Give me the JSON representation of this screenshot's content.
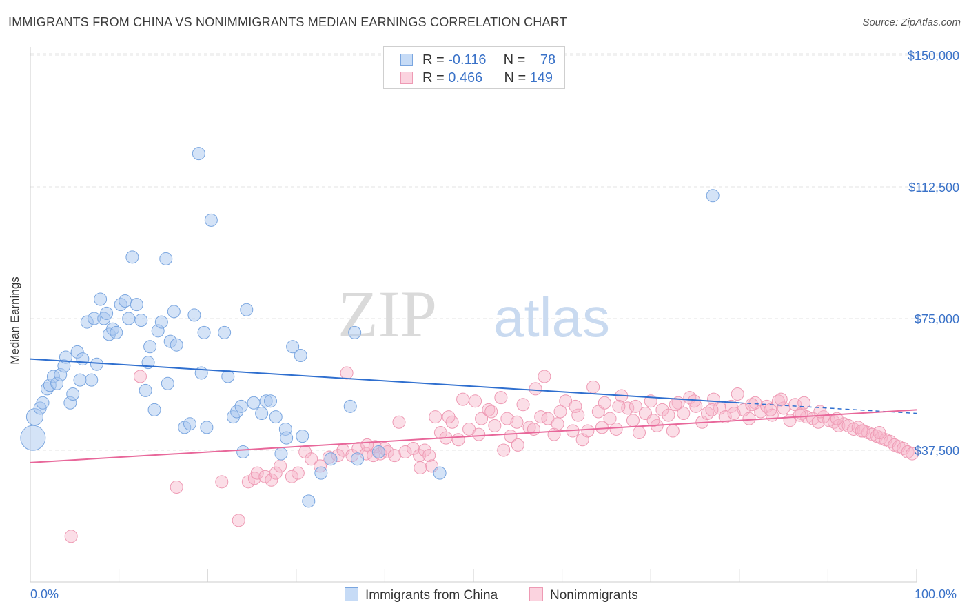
{
  "header": {
    "title": "IMMIGRANTS FROM CHINA VS NONIMMIGRANTS MEDIAN EARNINGS CORRELATION CHART",
    "source": "Source: ZipAtlas.com"
  },
  "watermark": {
    "zip": "ZIP",
    "atlas": "atlas"
  },
  "legend": {
    "rows": [
      {
        "r_label": "R = ",
        "r_value": "-0.116",
        "n_label": "N = ",
        "n_value": "78",
        "color": "#a9c8f0"
      },
      {
        "r_label": "R = ",
        "r_value": "0.466",
        "n_label": "N = ",
        "n_value": "149",
        "color": "#f6b6c9"
      }
    ]
  },
  "bottom_legend": {
    "items": [
      {
        "label": "Immigrants from China",
        "color": "#a9c8f0"
      },
      {
        "label": "Nonimmigrants",
        "color": "#f6b6c9"
      }
    ]
  },
  "chart_data": {
    "type": "scatter",
    "title": "IMMIGRANTS FROM CHINA VS NONIMMIGRANTS MEDIAN EARNINGS CORRELATION CHART",
    "xlabel": "",
    "ylabel": "Median Earnings",
    "xlim": [
      0,
      100
    ],
    "ylim": [
      0,
      155000
    ],
    "x_tick_labels": [
      "0.0%",
      "100.0%"
    ],
    "y_ticks": [
      37500,
      75000,
      112500,
      150000
    ],
    "y_tick_labels": [
      "$37,500",
      "$75,000",
      "$112,500",
      "$150,000"
    ],
    "grid": true,
    "legend_position": "top-center",
    "colors": {
      "china": "#a9c8f0",
      "china_line": "#2f6fcf",
      "nonimm": "#f6b6c9",
      "nonimm_line": "#e8679a"
    },
    "series": [
      {
        "name": "Immigrants from China",
        "r": -0.116,
        "n": 78,
        "trend": {
          "x": [
            0,
            80
          ],
          "y": [
            63500,
            51000
          ]
        },
        "trend_extension": {
          "x": [
            80,
            100
          ],
          "y": [
            51000,
            48000
          ]
        },
        "points": [
          [
            0.3,
            41000,
            10
          ],
          [
            0.5,
            47000,
            5
          ],
          [
            1.1,
            49500,
            3
          ],
          [
            1.4,
            51000,
            3
          ],
          [
            1.9,
            55000,
            3
          ],
          [
            2.2,
            56000,
            3
          ],
          [
            2.6,
            58500,
            3
          ],
          [
            3.0,
            56500,
            3
          ],
          [
            3.4,
            59000,
            3
          ],
          [
            3.8,
            61500,
            3
          ],
          [
            4.0,
            64000,
            3
          ],
          [
            4.5,
            51000,
            3
          ],
          [
            4.8,
            53500,
            3
          ],
          [
            5.3,
            65500,
            3
          ],
          [
            5.6,
            57500,
            3
          ],
          [
            5.9,
            63500,
            3
          ],
          [
            6.4,
            74000,
            3
          ],
          [
            6.9,
            57500,
            3
          ],
          [
            7.2,
            75000,
            3
          ],
          [
            7.5,
            62000,
            3
          ],
          [
            7.9,
            80500,
            3
          ],
          [
            8.3,
            75000,
            3
          ],
          [
            8.6,
            76500,
            3
          ],
          [
            8.9,
            70500,
            3
          ],
          [
            9.3,
            72000,
            3
          ],
          [
            9.7,
            71000,
            3
          ],
          [
            10.2,
            79000,
            3
          ],
          [
            10.7,
            80000,
            3
          ],
          [
            11.1,
            75000,
            3
          ],
          [
            11.5,
            92500,
            3
          ],
          [
            12.0,
            79000,
            3
          ],
          [
            12.5,
            74500,
            3
          ],
          [
            13.0,
            54500,
            3
          ],
          [
            13.3,
            62500,
            3
          ],
          [
            13.5,
            67000,
            3
          ],
          [
            14.0,
            49000,
            3
          ],
          [
            14.4,
            71500,
            3
          ],
          [
            14.8,
            74000,
            3
          ],
          [
            15.3,
            92000,
            3
          ],
          [
            15.5,
            56500,
            3
          ],
          [
            15.8,
            68500,
            3
          ],
          [
            16.2,
            77000,
            3
          ],
          [
            16.5,
            67500,
            3
          ],
          [
            17.4,
            44000,
            3
          ],
          [
            18.0,
            45000,
            3
          ],
          [
            18.5,
            76000,
            3
          ],
          [
            19.0,
            122000,
            3
          ],
          [
            19.3,
            59500,
            3
          ],
          [
            19.6,
            71000,
            3
          ],
          [
            19.9,
            44000,
            3
          ],
          [
            20.4,
            103000,
            3
          ],
          [
            21.9,
            71000,
            3
          ],
          [
            22.3,
            58500,
            3
          ],
          [
            22.9,
            47000,
            3
          ],
          [
            23.3,
            48500,
            3
          ],
          [
            23.8,
            50000,
            3
          ],
          [
            24.0,
            37000,
            3
          ],
          [
            24.4,
            77500,
            3
          ],
          [
            25.2,
            51000,
            3
          ],
          [
            26.1,
            48000,
            3
          ],
          [
            26.6,
            51500,
            3
          ],
          [
            27.1,
            51500,
            3
          ],
          [
            27.7,
            47000,
            3
          ],
          [
            28.3,
            36500,
            3
          ],
          [
            28.8,
            43500,
            3
          ],
          [
            28.9,
            41000,
            3
          ],
          [
            29.6,
            67000,
            3
          ],
          [
            30.5,
            64500,
            3
          ],
          [
            30.7,
            41500,
            3
          ],
          [
            31.4,
            23000,
            3
          ],
          [
            32.8,
            31000,
            3
          ],
          [
            33.9,
            35000,
            3
          ],
          [
            36.1,
            50000,
            3
          ],
          [
            36.6,
            71000,
            3
          ],
          [
            36.9,
            35000,
            3
          ],
          [
            39.3,
            37000,
            3
          ],
          [
            46.2,
            31000,
            3
          ],
          [
            77.0,
            110000,
            3
          ]
        ]
      },
      {
        "name": "Nonimmigrants",
        "r": 0.466,
        "n": 149,
        "trend": {
          "x": [
            0,
            100
          ],
          "y": [
            34000,
            49000
          ]
        },
        "points": [
          [
            4.6,
            13000
          ],
          [
            12.4,
            58500
          ],
          [
            16.5,
            27000
          ],
          [
            21.6,
            28500
          ],
          [
            23.5,
            17500
          ],
          [
            24.6,
            28500
          ],
          [
            25.3,
            29500
          ],
          [
            25.6,
            31000
          ],
          [
            26.5,
            30000
          ],
          [
            27.2,
            29000
          ],
          [
            27.7,
            31000
          ],
          [
            28.2,
            33000
          ],
          [
            29.5,
            30000
          ],
          [
            30.2,
            31000
          ],
          [
            31.0,
            37000
          ],
          [
            31.7,
            35000
          ],
          [
            32.7,
            33000
          ],
          [
            33.7,
            35500
          ],
          [
            34.7,
            36000
          ],
          [
            35.3,
            37500
          ],
          [
            35.7,
            59500
          ],
          [
            36.3,
            36000
          ],
          [
            37.0,
            38000
          ],
          [
            37.9,
            36500
          ],
          [
            38.7,
            36000
          ],
          [
            38.9,
            38500
          ],
          [
            39.5,
            36500
          ],
          [
            40.3,
            37000
          ],
          [
            41.1,
            36000
          ],
          [
            41.6,
            45500
          ],
          [
            42.3,
            37000
          ],
          [
            43.2,
            38000
          ],
          [
            43.9,
            36000
          ],
          [
            44.5,
            37500
          ],
          [
            45.0,
            36000
          ],
          [
            45.3,
            33000
          ],
          [
            45.7,
            47000
          ],
          [
            46.3,
            42500
          ],
          [
            46.9,
            41000
          ],
          [
            47.6,
            45500
          ],
          [
            48.3,
            40500
          ],
          [
            48.8,
            52000
          ],
          [
            49.5,
            43500
          ],
          [
            50.2,
            51500
          ],
          [
            50.9,
            46500
          ],
          [
            51.7,
            49000
          ],
          [
            52.4,
            44500
          ],
          [
            53.1,
            52500
          ],
          [
            53.8,
            46500
          ],
          [
            54.2,
            41500
          ],
          [
            54.9,
            45500
          ],
          [
            55.6,
            50500
          ],
          [
            56.3,
            44000
          ],
          [
            57.0,
            55000
          ],
          [
            57.6,
            47000
          ],
          [
            58.0,
            58500
          ],
          [
            58.4,
            46500
          ],
          [
            59.1,
            42000
          ],
          [
            59.8,
            48500
          ],
          [
            60.4,
            51500
          ],
          [
            61.2,
            43000
          ],
          [
            61.8,
            47500
          ],
          [
            62.3,
            40500
          ],
          [
            62.9,
            43000
          ],
          [
            63.5,
            55500
          ],
          [
            64.1,
            48500
          ],
          [
            64.8,
            51000
          ],
          [
            65.4,
            46500
          ],
          [
            66.1,
            43500
          ],
          [
            66.7,
            53000
          ],
          [
            67.4,
            49500
          ],
          [
            68.0,
            46000
          ],
          [
            68.7,
            42500
          ],
          [
            69.4,
            48000
          ],
          [
            70.0,
            51500
          ],
          [
            70.7,
            44500
          ],
          [
            71.3,
            49000
          ],
          [
            72.0,
            47500
          ],
          [
            72.5,
            43000
          ],
          [
            73.1,
            51000
          ],
          [
            73.7,
            48000
          ],
          [
            74.4,
            52500
          ],
          [
            75.1,
            50000
          ],
          [
            75.8,
            45500
          ],
          [
            76.4,
            48000
          ],
          [
            77.1,
            52000
          ],
          [
            77.8,
            49500
          ],
          [
            78.4,
            47000
          ],
          [
            79.1,
            50000
          ],
          [
            79.8,
            53500
          ],
          [
            80.5,
            49000
          ],
          [
            81.1,
            46500
          ],
          [
            81.8,
            51000
          ],
          [
            82.4,
            48500
          ],
          [
            83.1,
            50000
          ],
          [
            83.7,
            47500
          ],
          [
            84.4,
            51500
          ],
          [
            85.0,
            49500
          ],
          [
            85.7,
            46000
          ],
          [
            86.3,
            50500
          ],
          [
            87.0,
            48000
          ],
          [
            87.6,
            47000
          ],
          [
            88.3,
            46500
          ],
          [
            88.9,
            45500
          ],
          [
            89.5,
            47000
          ],
          [
            90.1,
            46000
          ],
          [
            90.7,
            45500
          ],
          [
            91.2,
            44500
          ],
          [
            91.8,
            45000
          ],
          [
            92.3,
            44500
          ],
          [
            92.9,
            43500
          ],
          [
            93.4,
            44000
          ],
          [
            94.0,
            43000
          ],
          [
            94.5,
            42500
          ],
          [
            95.0,
            42000
          ],
          [
            95.5,
            41500
          ],
          [
            96.0,
            41000
          ],
          [
            96.5,
            40500
          ],
          [
            97.0,
            40000
          ],
          [
            97.5,
            39000
          ],
          [
            98.0,
            38500
          ],
          [
            98.5,
            38000
          ],
          [
            99.0,
            37000
          ],
          [
            99.5,
            36500
          ],
          [
            95.8,
            42500
          ],
          [
            93.8,
            43000
          ],
          [
            91.0,
            46500
          ],
          [
            89.1,
            48500
          ],
          [
            87.3,
            51000
          ],
          [
            86.8,
            47500
          ],
          [
            84.7,
            52000
          ],
          [
            83.5,
            49000
          ],
          [
            81.4,
            50500
          ],
          [
            79.4,
            48000
          ],
          [
            76.9,
            49000
          ],
          [
            74.9,
            51500
          ],
          [
            72.8,
            50500
          ],
          [
            70.3,
            46000
          ],
          [
            68.3,
            50000
          ],
          [
            66.4,
            50000
          ],
          [
            64.5,
            44000
          ],
          [
            61.5,
            50000
          ],
          [
            59.5,
            45000
          ],
          [
            56.8,
            43500
          ],
          [
            55.0,
            39000
          ],
          [
            53.4,
            37500
          ],
          [
            52.0,
            48500
          ],
          [
            50.6,
            42000
          ],
          [
            47.2,
            47000
          ],
          [
            44.0,
            32500
          ],
          [
            40.0,
            38000
          ],
          [
            38.0,
            39000
          ]
        ]
      }
    ]
  }
}
